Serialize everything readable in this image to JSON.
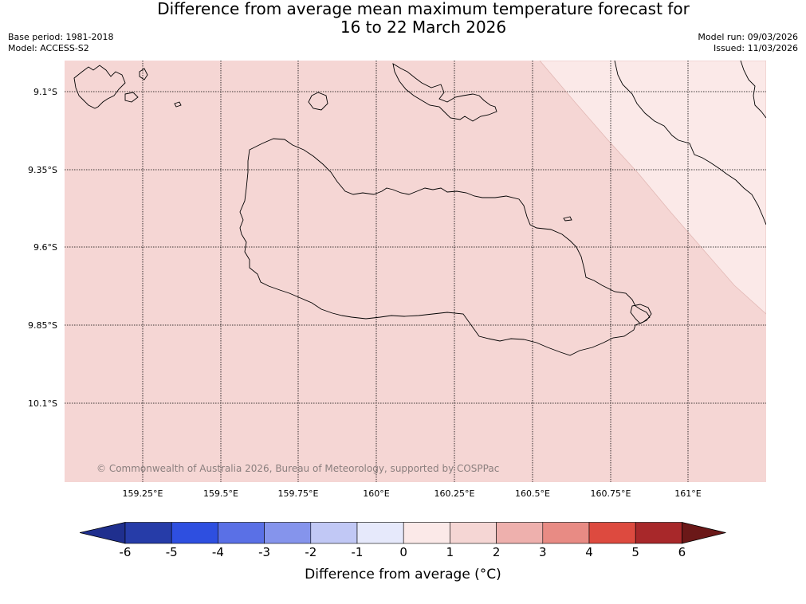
{
  "title_line1": "Difference from average mean maximum temperature forecast for",
  "title_line2": "16 to 22 March 2026",
  "base_period": "Base period: 1981-2018",
  "model": "Model: ACCESS-S2",
  "model_run": "Model run: 09/03/2026",
  "issued": "Issued: 11/03/2026",
  "copyright": "© Commonwealth of Australia 2026, Bureau of Meteorology, supported by COSPPac",
  "lat_labels": [
    "9.1°S",
    "9.35°S",
    "9.6°S",
    "9.85°S",
    "10.1°S"
  ],
  "lon_labels": [
    "159.25°E",
    "159.5°E",
    "159.75°E",
    "160°E",
    "160.25°E",
    "160.5°E",
    "160.75°E",
    "161°E"
  ],
  "colorbar": {
    "ticks": [
      "-6",
      "-5",
      "-4",
      "-3",
      "-2",
      "-1",
      "0",
      "1",
      "2",
      "3",
      "4",
      "5",
      "6"
    ],
    "colors": [
      "#1f2f8e",
      "#263ca8",
      "#2e4fe0",
      "#5a70e6",
      "#8594ec",
      "#c1c8f5",
      "#e6e9fb",
      "#fbe9e8",
      "#f5d6d4",
      "#eeb0ad",
      "#e88b84",
      "#dd4a3f",
      "#a8282a",
      "#6b1818"
    ],
    "label": "Difference from average (°C)"
  },
  "legend_colors": {
    "region_1_2": "#f5d6d4",
    "region_0_1": "#fbe9e8"
  }
}
